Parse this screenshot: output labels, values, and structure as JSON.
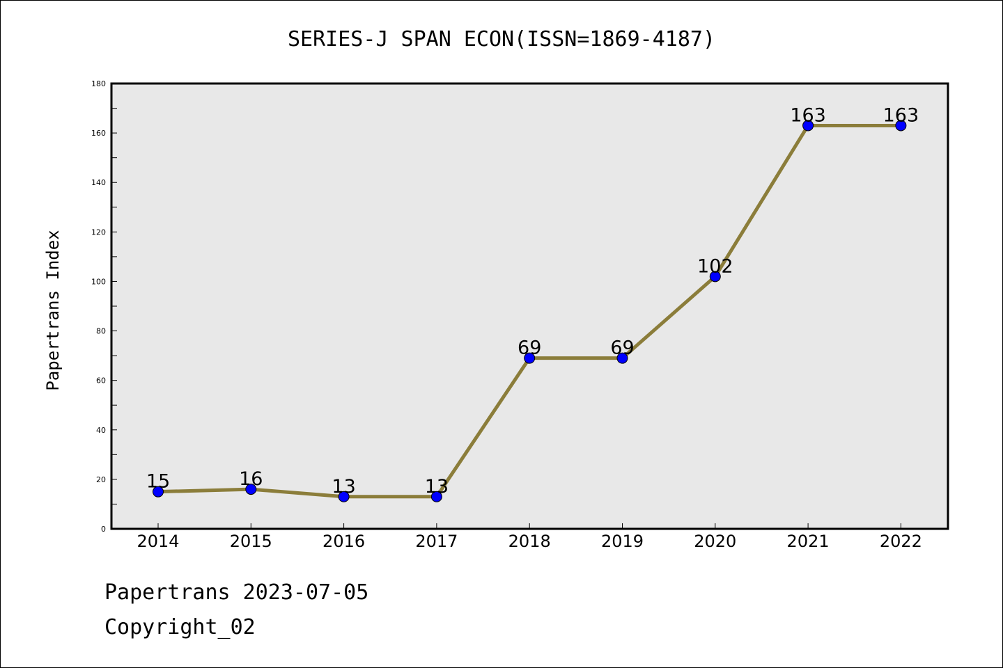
{
  "chart_data": {
    "type": "line",
    "title": "SERIES-J SPAN ECON(ISSN=1869-4187)",
    "xlabel": "",
    "ylabel": "Papertrans Index",
    "categories": [
      "2014",
      "2015",
      "2016",
      "2017",
      "2018",
      "2019",
      "2020",
      "2021",
      "2022"
    ],
    "series": [
      {
        "values": [
          15,
          16,
          13,
          13,
          69,
          69,
          102,
          163,
          163
        ]
      }
    ],
    "ylim": [
      0,
      180
    ],
    "yticks": [
      0,
      20,
      40,
      60,
      80,
      100,
      120,
      140,
      160,
      180
    ],
    "grid": false,
    "data_labels": true,
    "colors": {
      "line": "#8b7d3a",
      "marker": "#0000ff",
      "plot_background": "#e8e8e8"
    }
  },
  "footer": {
    "line1": "Papertrans 2023-07-05",
    "line2": "Copyright_02"
  }
}
